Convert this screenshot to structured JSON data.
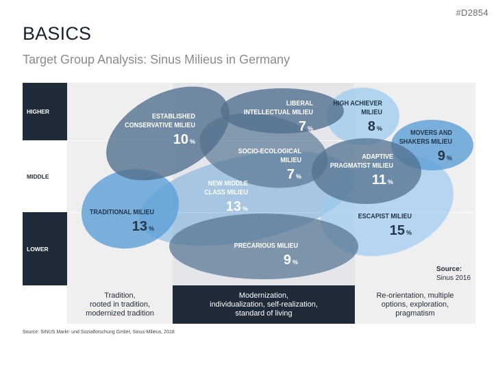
{
  "slide_id": "#D2854",
  "title": "BASICS",
  "subtitle": "Target Group Analysis: Sinus Milieus in Germany",
  "rows": [
    {
      "label": "HIGHER"
    },
    {
      "label": "MIDDLE"
    },
    {
      "label": "LOWER"
    }
  ],
  "columns": [
    {
      "label": "Tradition,\nrooted in tradition,\nmodernized tradition"
    },
    {
      "label": "Modernization,\nindividualization, self-realization,\nstandard of living"
    },
    {
      "label": "Re-orientation, multiple\noptions, exploration,\npragmatism"
    }
  ],
  "milieus": [
    {
      "name": "ESTABLISHED\nCONSERVATIVE MILIEU",
      "value": "10",
      "unit": "%"
    },
    {
      "name": "LIBERAL\nINTELLECTUAL MILIEU",
      "value": "7",
      "unit": "%"
    },
    {
      "name": "HIGH ACHIEVER\nMILIEU",
      "value": "8",
      "unit": "%"
    },
    {
      "name": "MOVERS AND\nSHAKERS MILIEU",
      "value": "9",
      "unit": "%"
    },
    {
      "name": "SOCIO-ECOLOGICAL MILIEU",
      "value": "7",
      "unit": "%"
    },
    {
      "name": "ADAPTIVE\nPRAGMATIST MILIEU",
      "value": "11",
      "unit": "%"
    },
    {
      "name": "NEW MIDDLE\nCLASS MILIEU",
      "value": "13",
      "unit": "%"
    },
    {
      "name": "TRADITIONAL MILIEU",
      "value": "13",
      "unit": "%"
    },
    {
      "name": "ESCAPIST MILIEU",
      "value": "15",
      "unit": "%"
    },
    {
      "name": "PRECARIOUS MILIEU",
      "value": "9",
      "unit": "%"
    }
  ],
  "source": {
    "label": "Source:",
    "text": "Sinus 2016"
  },
  "footnote": "Source: SINUS Markt- und Sozialforschung GmbH, Sinus-Milieus, 2018",
  "colors": {
    "dark": "#1f2b39",
    "slate": "#52708f",
    "blue": "#5c9fd6",
    "lightblue": "#9ccbef"
  }
}
